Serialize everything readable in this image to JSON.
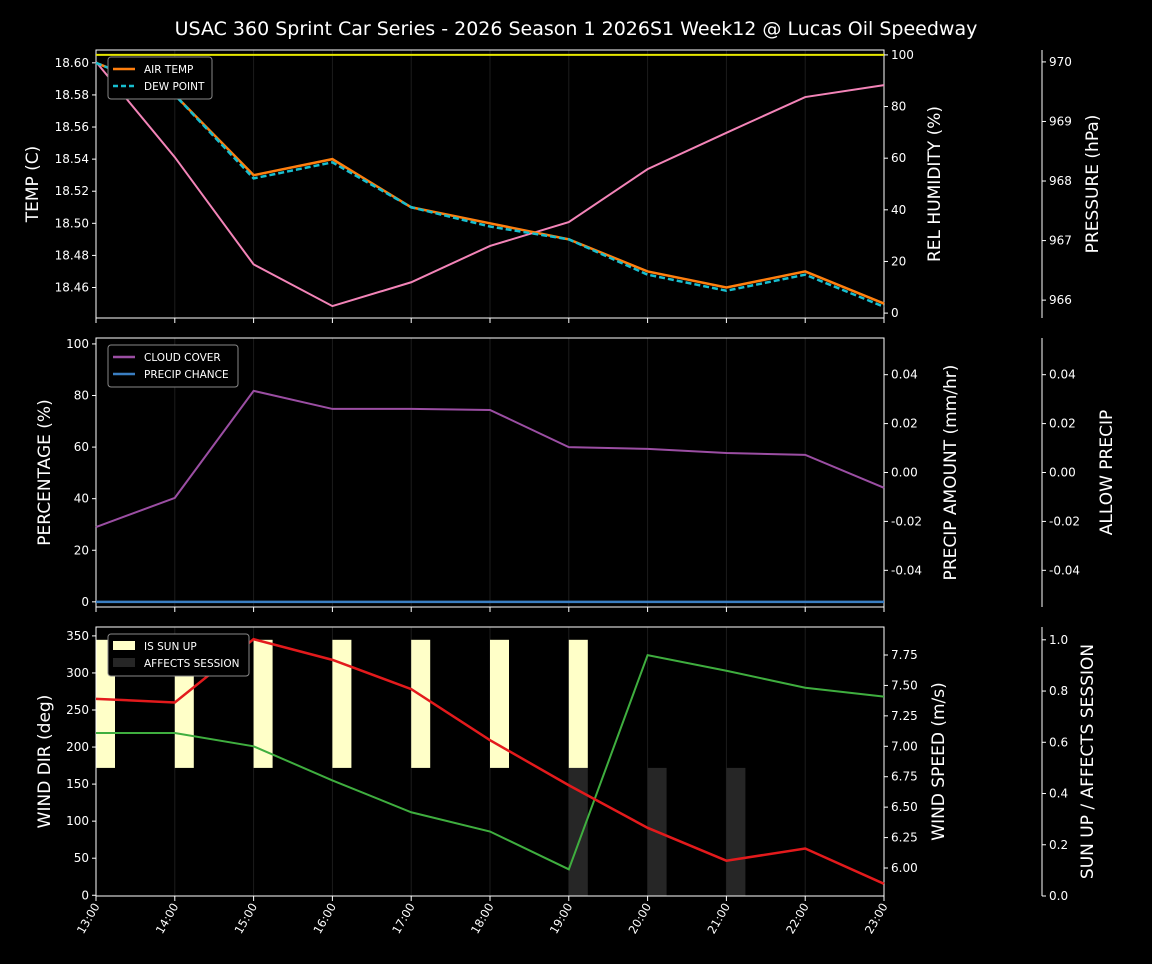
{
  "title": "USAC 360 Sprint Car Series - 2026 Season 1 2026S1 Week12 @ Lucas Oil Speedway",
  "colors": {
    "air_temp": "#ff7f0e",
    "dew_point": "#17becf",
    "humidity": "#e6e600",
    "pressure": "#f384b8",
    "cloud": "#9b4ea3",
    "precip_chance": "#3a7ec2",
    "precip_amount_label": "#b05a28",
    "wind_dir": "#3fae3f",
    "wind_speed": "#e31a1c",
    "sun_up": "#ffffc8",
    "affects_session": "#262626"
  },
  "chart_data": [
    {
      "type": "line",
      "x": [
        "13:00",
        "14:00",
        "15:00",
        "16:00",
        "17:00",
        "18:00",
        "19:00",
        "20:00",
        "21:00",
        "22:00",
        "23:00"
      ],
      "ylabel": "TEMP (C)",
      "ylim": [
        18.441,
        18.608
      ],
      "yticks": [
        "18.46",
        "18.48",
        "18.50",
        "18.52",
        "18.54",
        "18.56",
        "18.58",
        "18.60"
      ],
      "y2label": "REL HUMIDITY (%)",
      "y2lim": [
        -1.9,
        101.9
      ],
      "y2ticks": [
        "0",
        "20",
        "40",
        "60",
        "80",
        "100"
      ],
      "y3label": "PRESSURE (hPa)",
      "y3lim": [
        965.7,
        970.2
      ],
      "y3ticks": [
        "966",
        "967",
        "968",
        "969",
        "970"
      ],
      "legend": "top-left",
      "grid": "vertical",
      "series": [
        {
          "name": "AIR TEMP",
          "axis": "y",
          "values": [
            18.6,
            18.58,
            18.53,
            18.54,
            18.51,
            18.5,
            18.49,
            18.47,
            18.46,
            18.47,
            18.45
          ]
        },
        {
          "name": "DEW POINT",
          "axis": "y",
          "dashed": true,
          "values": [
            18.6,
            18.58,
            18.528,
            18.538,
            18.51,
            18.498,
            18.49,
            18.468,
            18.458,
            18.468,
            18.448
          ]
        },
        {
          "axis": "y2",
          "values": [
            100,
            100,
            100,
            100,
            100,
            100,
            100,
            100,
            100,
            100,
            100
          ]
        },
        {
          "axis": "y3",
          "values": [
            970.0,
            968.4,
            966.6,
            965.9,
            966.3,
            966.91,
            967.31,
            968.2,
            968.81,
            969.41,
            969.61
          ]
        }
      ]
    },
    {
      "type": "line",
      "x": [
        "13:00",
        "14:00",
        "15:00",
        "16:00",
        "17:00",
        "18:00",
        "19:00",
        "20:00",
        "21:00",
        "22:00",
        "23:00"
      ],
      "ylabel": "PERCENTAGE (%)",
      "ylim": [
        -2,
        102.3
      ],
      "yticks": [
        "0",
        "20",
        "40",
        "60",
        "80",
        "100"
      ],
      "y2label": "PRECIP AMOUNT (mm/hr)",
      "y2lim": [
        -0.055,
        0.055
      ],
      "y2ticks": [
        "-0.04",
        "-0.02",
        "0.00",
        "0.02",
        "0.04"
      ],
      "y3label": "ALLOW PRECIP",
      "y3lim": [
        -0.055,
        0.055
      ],
      "y3ticks": [
        "-0.04",
        "-0.02",
        "0.00",
        "0.02",
        "0.04"
      ],
      "legend": "top-left",
      "grid": "vertical",
      "series": [
        {
          "name": "CLOUD COVER",
          "values": [
            29,
            40.3,
            81.8,
            74.8,
            74.8,
            74.4,
            60,
            59.3,
            57.7,
            57,
            44.2
          ]
        },
        {
          "name": "PRECIP CHANCE",
          "values": [
            0,
            0,
            0,
            0,
            0,
            0,
            0,
            0,
            0,
            0,
            0
          ]
        }
      ]
    },
    {
      "type": "line",
      "x": [
        "13:00",
        "14:00",
        "15:00",
        "16:00",
        "17:00",
        "18:00",
        "19:00",
        "20:00",
        "21:00",
        "22:00",
        "23:00"
      ],
      "ylabel": "WIND DIR (deg)",
      "ylim": [
        -1,
        362
      ],
      "yticks": [
        "0",
        "50",
        "100",
        "150",
        "200",
        "250",
        "300",
        "350"
      ],
      "y2label": "WIND SPEED (m/s)",
      "y2lim": [
        5.77,
        7.98
      ],
      "y2ticks": [
        "6.00",
        "6.25",
        "6.50",
        "6.75",
        "7.00",
        "7.25",
        "7.50",
        "7.75"
      ],
      "y3label": "SUN UP / AFFECTS SESSION",
      "y3lim": [
        0,
        1.05
      ],
      "y3ticks": [
        "0.0",
        "0.2",
        "0.4",
        "0.6",
        "0.8",
        "1.0"
      ],
      "legend": "top-left",
      "grid": "vertical",
      "series": [
        {
          "axis": "y",
          "values": [
            219,
            219,
            201,
            155,
            112,
            86,
            35,
            324,
            303,
            280,
            268
          ]
        },
        {
          "axis": "y2",
          "values": [
            7.39,
            7.36,
            7.88,
            7.71,
            7.47,
            7.05,
            6.68,
            6.33,
            6.06,
            6.16,
            5.87
          ]
        }
      ],
      "bars": [
        {
          "name": "IS SUN UP",
          "values": [
            1,
            1,
            1,
            1,
            1,
            1,
            1,
            0,
            0,
            0,
            0
          ]
        },
        {
          "name": "AFFECTS SESSION",
          "values": [
            0,
            0,
            0,
            0,
            0,
            0,
            1,
            1,
            1,
            0,
            0
          ]
        }
      ]
    }
  ]
}
